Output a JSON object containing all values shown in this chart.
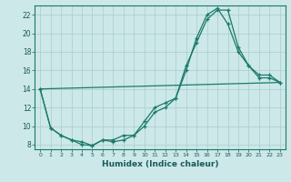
{
  "xlabel": "Humidex (Indice chaleur)",
  "bg_color": "#cce8e8",
  "grid_color": "#aacccc",
  "line_color": "#1a7a6a",
  "xlim": [
    -0.5,
    23.5
  ],
  "ylim": [
    7.5,
    23.0
  ],
  "yticks": [
    8,
    10,
    12,
    14,
    16,
    18,
    20,
    22
  ],
  "xticks": [
    0,
    1,
    2,
    3,
    4,
    5,
    6,
    7,
    8,
    9,
    10,
    11,
    12,
    13,
    14,
    15,
    16,
    17,
    18,
    19,
    20,
    21,
    22,
    23
  ],
  "series1_x": [
    0,
    1,
    2,
    3,
    4,
    5,
    6,
    7,
    8,
    9,
    10,
    11,
    12,
    13,
    14,
    15,
    16,
    17,
    18,
    19,
    20,
    21,
    22,
    23
  ],
  "series1_y": [
    14.0,
    9.8,
    9.0,
    8.5,
    8.0,
    7.9,
    8.5,
    8.5,
    9.0,
    9.0,
    10.5,
    12.0,
    12.5,
    13.0,
    16.5,
    19.0,
    21.5,
    22.5,
    22.5,
    18.5,
    16.5,
    15.2,
    15.2,
    14.7
  ],
  "series2_x": [
    0,
    1,
    2,
    3,
    4,
    5,
    6,
    7,
    8,
    9,
    10,
    11,
    12,
    13,
    14,
    15,
    16,
    17,
    18,
    19,
    20,
    21,
    22,
    23
  ],
  "series2_y": [
    14.0,
    9.8,
    9.0,
    8.5,
    8.3,
    7.9,
    8.5,
    8.3,
    8.5,
    9.0,
    10.0,
    11.5,
    12.0,
    13.0,
    16.0,
    19.5,
    22.0,
    22.7,
    21.0,
    18.0,
    16.5,
    15.5,
    15.5,
    14.7
  ],
  "series3_x": [
    0,
    23
  ],
  "series3_y": [
    14.0,
    14.7
  ]
}
